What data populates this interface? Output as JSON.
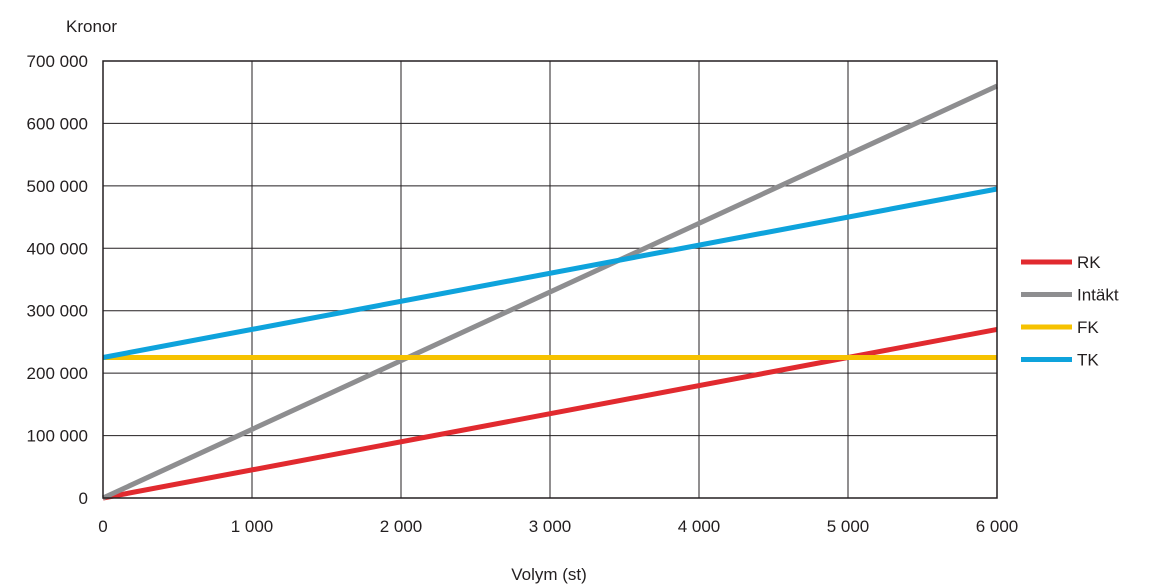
{
  "chart_data": {
    "type": "line",
    "title": "",
    "ylabel": "Kronor",
    "xlabel": "Volym (st)",
    "xlim": [
      0,
      6000
    ],
    "ylim": [
      0,
      700000
    ],
    "x_ticks": [
      0,
      1000,
      2000,
      3000,
      4000,
      5000,
      6000
    ],
    "y_ticks": [
      0,
      100000,
      200000,
      300000,
      400000,
      500000,
      600000,
      700000
    ],
    "x_tick_labels": [
      "0",
      "1 000",
      "2 000",
      "3 000",
      "4 000",
      "5 000",
      "6 000"
    ],
    "y_tick_labels": [
      "0",
      "100 000",
      "200 000",
      "300 000",
      "400 000",
      "500 000",
      "600 000",
      "700 000"
    ],
    "grid": true,
    "legend_position": "right",
    "series": [
      {
        "name": "RK",
        "color": "#e12a2f",
        "x": [
          0,
          6000
        ],
        "y": [
          0,
          270000
        ]
      },
      {
        "name": "Intäkt",
        "color": "#8e8e90",
        "x": [
          0,
          6000
        ],
        "y": [
          0,
          660000
        ]
      },
      {
        "name": "FK",
        "color": "#f6c200",
        "x": [
          0,
          6000
        ],
        "y": [
          225000,
          225000
        ]
      },
      {
        "name": "TK",
        "color": "#0ea3dc",
        "x": [
          0,
          6000
        ],
        "y": [
          225000,
          495000
        ]
      }
    ]
  }
}
